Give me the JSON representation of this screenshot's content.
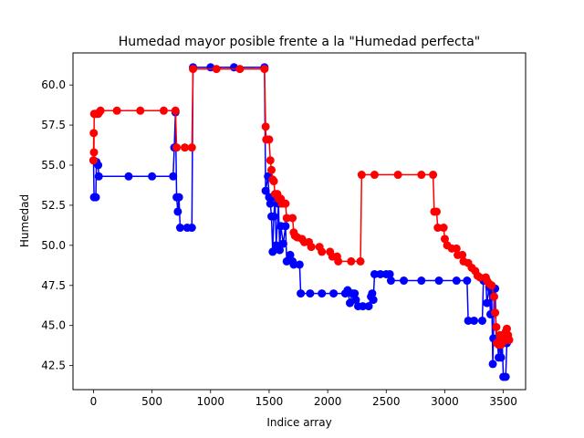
{
  "chart_data": {
    "type": "line",
    "title": "Humedad mayor posible frente a la \"Humedad perfecta\"",
    "xlabel": "Indice array",
    "ylabel": "Humedad",
    "xlim": [
      -175,
      3690
    ],
    "ylim": [
      41.0,
      62.0
    ],
    "x_ticks": [
      0,
      500,
      1000,
      1500,
      2000,
      2500,
      3000,
      3500
    ],
    "y_ticks": [
      42.5,
      45.0,
      47.5,
      50.0,
      52.5,
      55.0,
      57.5,
      60.0
    ],
    "y_tick_labels": [
      "42.5",
      "45.0",
      "47.5",
      "50.0",
      "52.5",
      "55.0",
      "57.5",
      "60.0"
    ],
    "marker": "circle",
    "series": [
      {
        "name": "Humedad mayor posible",
        "color": "#0000ff",
        "points": [
          [
            0,
            55.3
          ],
          [
            5,
            53.0
          ],
          [
            20,
            53.0
          ],
          [
            25,
            55.2
          ],
          [
            40,
            55.0
          ],
          [
            45,
            54.3
          ],
          [
            300,
            54.3
          ],
          [
            500,
            54.3
          ],
          [
            680,
            54.3
          ],
          [
            690,
            56.1
          ],
          [
            700,
            58.3
          ],
          [
            710,
            53.0
          ],
          [
            720,
            52.1
          ],
          [
            730,
            53.0
          ],
          [
            740,
            51.1
          ],
          [
            800,
            51.1
          ],
          [
            840,
            51.1
          ],
          [
            850,
            61.1
          ],
          [
            1000,
            61.1
          ],
          [
            1200,
            61.1
          ],
          [
            1460,
            61.1
          ],
          [
            1470,
            53.4
          ],
          [
            1490,
            54.3
          ],
          [
            1500,
            53.0
          ],
          [
            1510,
            52.6
          ],
          [
            1520,
            51.8
          ],
          [
            1530,
            49.6
          ],
          [
            1540,
            51.8
          ],
          [
            1550,
            53.0
          ],
          [
            1560,
            50.0
          ],
          [
            1580,
            52.6
          ],
          [
            1590,
            49.7
          ],
          [
            1600,
            51.2
          ],
          [
            1620,
            50.1
          ],
          [
            1640,
            51.2
          ],
          [
            1650,
            49.0
          ],
          [
            1680,
            49.4
          ],
          [
            1700,
            49.0
          ],
          [
            1710,
            48.8
          ],
          [
            1760,
            48.8
          ],
          [
            1770,
            47.0
          ],
          [
            1850,
            47.0
          ],
          [
            1950,
            47.0
          ],
          [
            2050,
            47.0
          ],
          [
            2150,
            47.0
          ],
          [
            2170,
            47.2
          ],
          [
            2190,
            46.4
          ],
          [
            2210,
            47.0
          ],
          [
            2230,
            47.0
          ],
          [
            2240,
            46.6
          ],
          [
            2260,
            46.2
          ],
          [
            2300,
            46.2
          ],
          [
            2350,
            46.2
          ],
          [
            2370,
            46.8
          ],
          [
            2380,
            47.0
          ],
          [
            2390,
            46.6
          ],
          [
            2400,
            48.2
          ],
          [
            2450,
            48.2
          ],
          [
            2500,
            48.2
          ],
          [
            2530,
            48.2
          ],
          [
            2540,
            47.8
          ],
          [
            2650,
            47.8
          ],
          [
            2800,
            47.8
          ],
          [
            2950,
            47.8
          ],
          [
            3100,
            47.8
          ],
          [
            3190,
            47.8
          ],
          [
            3200,
            45.3
          ],
          [
            3250,
            45.3
          ],
          [
            3320,
            45.3
          ],
          [
            3330,
            47.8
          ],
          [
            3350,
            47.8
          ],
          [
            3360,
            46.4
          ],
          [
            3380,
            47.4
          ],
          [
            3390,
            45.7
          ],
          [
            3400,
            47.1
          ],
          [
            3410,
            42.6
          ],
          [
            3415,
            44.2
          ],
          [
            3420,
            46.8
          ],
          [
            3430,
            47.3
          ],
          [
            3440,
            44.0
          ],
          [
            3450,
            43.9
          ],
          [
            3460,
            43.0
          ],
          [
            3470,
            43.9
          ],
          [
            3480,
            43.0
          ],
          [
            3490,
            44.0
          ],
          [
            3500,
            41.8
          ],
          [
            3520,
            41.8
          ],
          [
            3530,
            43.9
          ]
        ]
      },
      {
        "name": "Humedad perfecta",
        "color": "#ff0000",
        "points": [
          [
            0,
            55.3
          ],
          [
            2,
            57.0
          ],
          [
            4,
            55.8
          ],
          [
            6,
            58.2
          ],
          [
            20,
            58.2
          ],
          [
            40,
            58.2
          ],
          [
            50,
            58.3
          ],
          [
            60,
            58.4
          ],
          [
            200,
            58.4
          ],
          [
            400,
            58.4
          ],
          [
            600,
            58.4
          ],
          [
            700,
            58.4
          ],
          [
            710,
            56.1
          ],
          [
            780,
            56.1
          ],
          [
            840,
            56.1
          ],
          [
            850,
            61.0
          ],
          [
            1050,
            61.0
          ],
          [
            1250,
            61.0
          ],
          [
            1460,
            61.0
          ],
          [
            1470,
            57.4
          ],
          [
            1475,
            56.6
          ],
          [
            1500,
            56.6
          ],
          [
            1510,
            55.3
          ],
          [
            1520,
            54.7
          ],
          [
            1530,
            54.1
          ],
          [
            1540,
            54.0
          ],
          [
            1550,
            53.2
          ],
          [
            1570,
            53.2
          ],
          [
            1580,
            52.9
          ],
          [
            1600,
            52.9
          ],
          [
            1610,
            52.6
          ],
          [
            1640,
            52.6
          ],
          [
            1650,
            51.7
          ],
          [
            1700,
            51.7
          ],
          [
            1710,
            50.8
          ],
          [
            1720,
            50.6
          ],
          [
            1740,
            50.5
          ],
          [
            1780,
            50.4
          ],
          [
            1800,
            50.2
          ],
          [
            1840,
            50.2
          ],
          [
            1860,
            49.9
          ],
          [
            1930,
            49.9
          ],
          [
            1950,
            49.6
          ],
          [
            2020,
            49.6
          ],
          [
            2040,
            49.3
          ],
          [
            2080,
            49.3
          ],
          [
            2090,
            49.0
          ],
          [
            2200,
            49.0
          ],
          [
            2280,
            49.0
          ],
          [
            2290,
            54.4
          ],
          [
            2400,
            54.4
          ],
          [
            2600,
            54.4
          ],
          [
            2800,
            54.4
          ],
          [
            2900,
            54.4
          ],
          [
            2910,
            52.1
          ],
          [
            2930,
            52.1
          ],
          [
            2940,
            51.1
          ],
          [
            2990,
            51.1
          ],
          [
            3000,
            50.4
          ],
          [
            3020,
            50.0
          ],
          [
            3060,
            49.8
          ],
          [
            3100,
            49.8
          ],
          [
            3110,
            49.4
          ],
          [
            3150,
            49.4
          ],
          [
            3160,
            49.0
          ],
          [
            3200,
            48.9
          ],
          [
            3230,
            48.6
          ],
          [
            3260,
            48.4
          ],
          [
            3280,
            48.1
          ],
          [
            3300,
            48.0
          ],
          [
            3350,
            48.0
          ],
          [
            3360,
            47.8
          ],
          [
            3380,
            47.6
          ],
          [
            3400,
            47.5
          ],
          [
            3420,
            46.8
          ],
          [
            3430,
            45.8
          ],
          [
            3440,
            44.9
          ],
          [
            3445,
            43.9
          ],
          [
            3460,
            43.8
          ],
          [
            3470,
            44.4
          ],
          [
            3480,
            43.8
          ],
          [
            3500,
            44.0
          ],
          [
            3510,
            44.2
          ],
          [
            3520,
            44.6
          ],
          [
            3530,
            44.8
          ],
          [
            3540,
            44.4
          ],
          [
            3550,
            44.1
          ]
        ]
      }
    ]
  }
}
